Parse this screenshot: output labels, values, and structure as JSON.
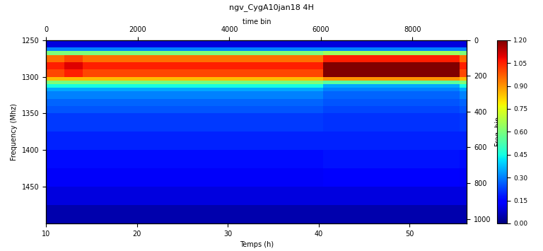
{
  "chart_data": {
    "type": "heatmap",
    "title": "ngv_CygA10jan18 4H",
    "xlabel": "Temps (h)",
    "ylabel": "Frequency (Mhz)",
    "x2label": "time bin",
    "y2label": "Freq. bin",
    "color": "jet",
    "xlim": [
      10,
      56.3
    ],
    "xticks": [
      10,
      20,
      30,
      40,
      50
    ],
    "ylim": [
      1500,
      1250
    ],
    "yticks": [
      1250,
      1300,
      1350,
      1400,
      1450
    ],
    "x2lim": [
      0,
      9190
    ],
    "x2ticks": [
      0,
      2000,
      4000,
      6000,
      8000
    ],
    "y2lim": [
      1025,
      0
    ],
    "y2ticks": [
      0,
      200,
      400,
      600,
      800,
      1000
    ],
    "x_edges": [
      10,
      12,
      14,
      16,
      20,
      25,
      30,
      35,
      40.5,
      45,
      50,
      55.5,
      56.3
    ],
    "y_edges": [
      1250,
      1260,
      1265,
      1270,
      1280,
      1290,
      1300,
      1305,
      1310,
      1315,
      1320,
      1330,
      1340,
      1350,
      1375,
      1400,
      1425,
      1450,
      1475,
      1500
    ],
    "cells": [
      [
        0.1,
        0.1,
        0.1,
        0.1,
        0.1,
        0.1,
        0.1,
        0.1,
        0.1,
        0.1,
        0.1,
        0.1
      ],
      [
        0.3,
        0.3,
        0.3,
        0.3,
        0.3,
        0.3,
        0.3,
        0.3,
        0.3,
        0.3,
        0.3,
        0.3
      ],
      [
        0.6,
        0.6,
        0.6,
        0.6,
        0.6,
        0.6,
        0.6,
        0.6,
        0.65,
        0.65,
        0.65,
        0.6
      ],
      [
        0.95,
        1.0,
        0.95,
        0.95,
        0.95,
        0.95,
        0.95,
        0.95,
        1.05,
        1.05,
        1.05,
        0.95
      ],
      [
        1.05,
        1.1,
        1.05,
        1.05,
        1.05,
        1.05,
        1.05,
        1.05,
        1.2,
        1.2,
        1.2,
        1.05
      ],
      [
        1.0,
        1.05,
        1.0,
        1.0,
        1.0,
        1.0,
        1.0,
        1.0,
        1.2,
        1.2,
        1.2,
        1.0
      ],
      [
        0.85,
        0.85,
        0.85,
        0.85,
        0.85,
        0.85,
        0.85,
        0.85,
        0.9,
        0.9,
        0.9,
        0.85
      ],
      [
        0.6,
        0.6,
        0.6,
        0.6,
        0.6,
        0.6,
        0.6,
        0.6,
        0.55,
        0.55,
        0.55,
        0.6
      ],
      [
        0.45,
        0.45,
        0.45,
        0.45,
        0.45,
        0.45,
        0.45,
        0.45,
        0.35,
        0.35,
        0.35,
        0.45
      ],
      [
        0.35,
        0.35,
        0.35,
        0.35,
        0.35,
        0.35,
        0.35,
        0.35,
        0.3,
        0.3,
        0.3,
        0.35
      ],
      [
        0.3,
        0.3,
        0.3,
        0.3,
        0.3,
        0.3,
        0.3,
        0.3,
        0.27,
        0.27,
        0.27,
        0.3
      ],
      [
        0.27,
        0.27,
        0.27,
        0.27,
        0.27,
        0.27,
        0.27,
        0.27,
        0.25,
        0.25,
        0.25,
        0.27
      ],
      [
        0.25,
        0.25,
        0.25,
        0.25,
        0.25,
        0.25,
        0.25,
        0.25,
        0.23,
        0.23,
        0.23,
        0.25
      ],
      [
        0.22,
        0.22,
        0.22,
        0.22,
        0.22,
        0.22,
        0.22,
        0.22,
        0.21,
        0.21,
        0.21,
        0.22
      ],
      [
        0.19,
        0.19,
        0.19,
        0.19,
        0.19,
        0.19,
        0.19,
        0.19,
        0.19,
        0.19,
        0.19,
        0.19
      ],
      [
        0.16,
        0.16,
        0.16,
        0.16,
        0.16,
        0.16,
        0.16,
        0.16,
        0.17,
        0.17,
        0.17,
        0.16
      ],
      [
        0.13,
        0.13,
        0.13,
        0.13,
        0.13,
        0.13,
        0.13,
        0.13,
        0.14,
        0.14,
        0.14,
        0.13
      ],
      [
        0.1,
        0.1,
        0.1,
        0.1,
        0.1,
        0.1,
        0.1,
        0.1,
        0.1,
        0.1,
        0.1,
        0.1
      ],
      [
        0.05,
        0.05,
        0.05,
        0.05,
        0.05,
        0.05,
        0.05,
        0.05,
        0.05,
        0.05,
        0.05,
        0.05
      ]
    ],
    "colorbar_range": [
      0,
      1.2
    ],
    "colorbar_ticks": [
      {
        "value": 0,
        "label": "0.00"
      },
      {
        "value": 0.15,
        "label": "0.15"
      },
      {
        "value": 0.3,
        "label": "0.30"
      },
      {
        "value": 0.45,
        "label": "0.45"
      },
      {
        "value": 0.6,
        "label": "0.60"
      },
      {
        "value": 0.75,
        "label": "0.75"
      },
      {
        "value": 0.9,
        "label": "0.90"
      },
      {
        "value": 1.05,
        "label": "1.05"
      },
      {
        "value": 1.2,
        "label": "1.20"
      }
    ]
  }
}
